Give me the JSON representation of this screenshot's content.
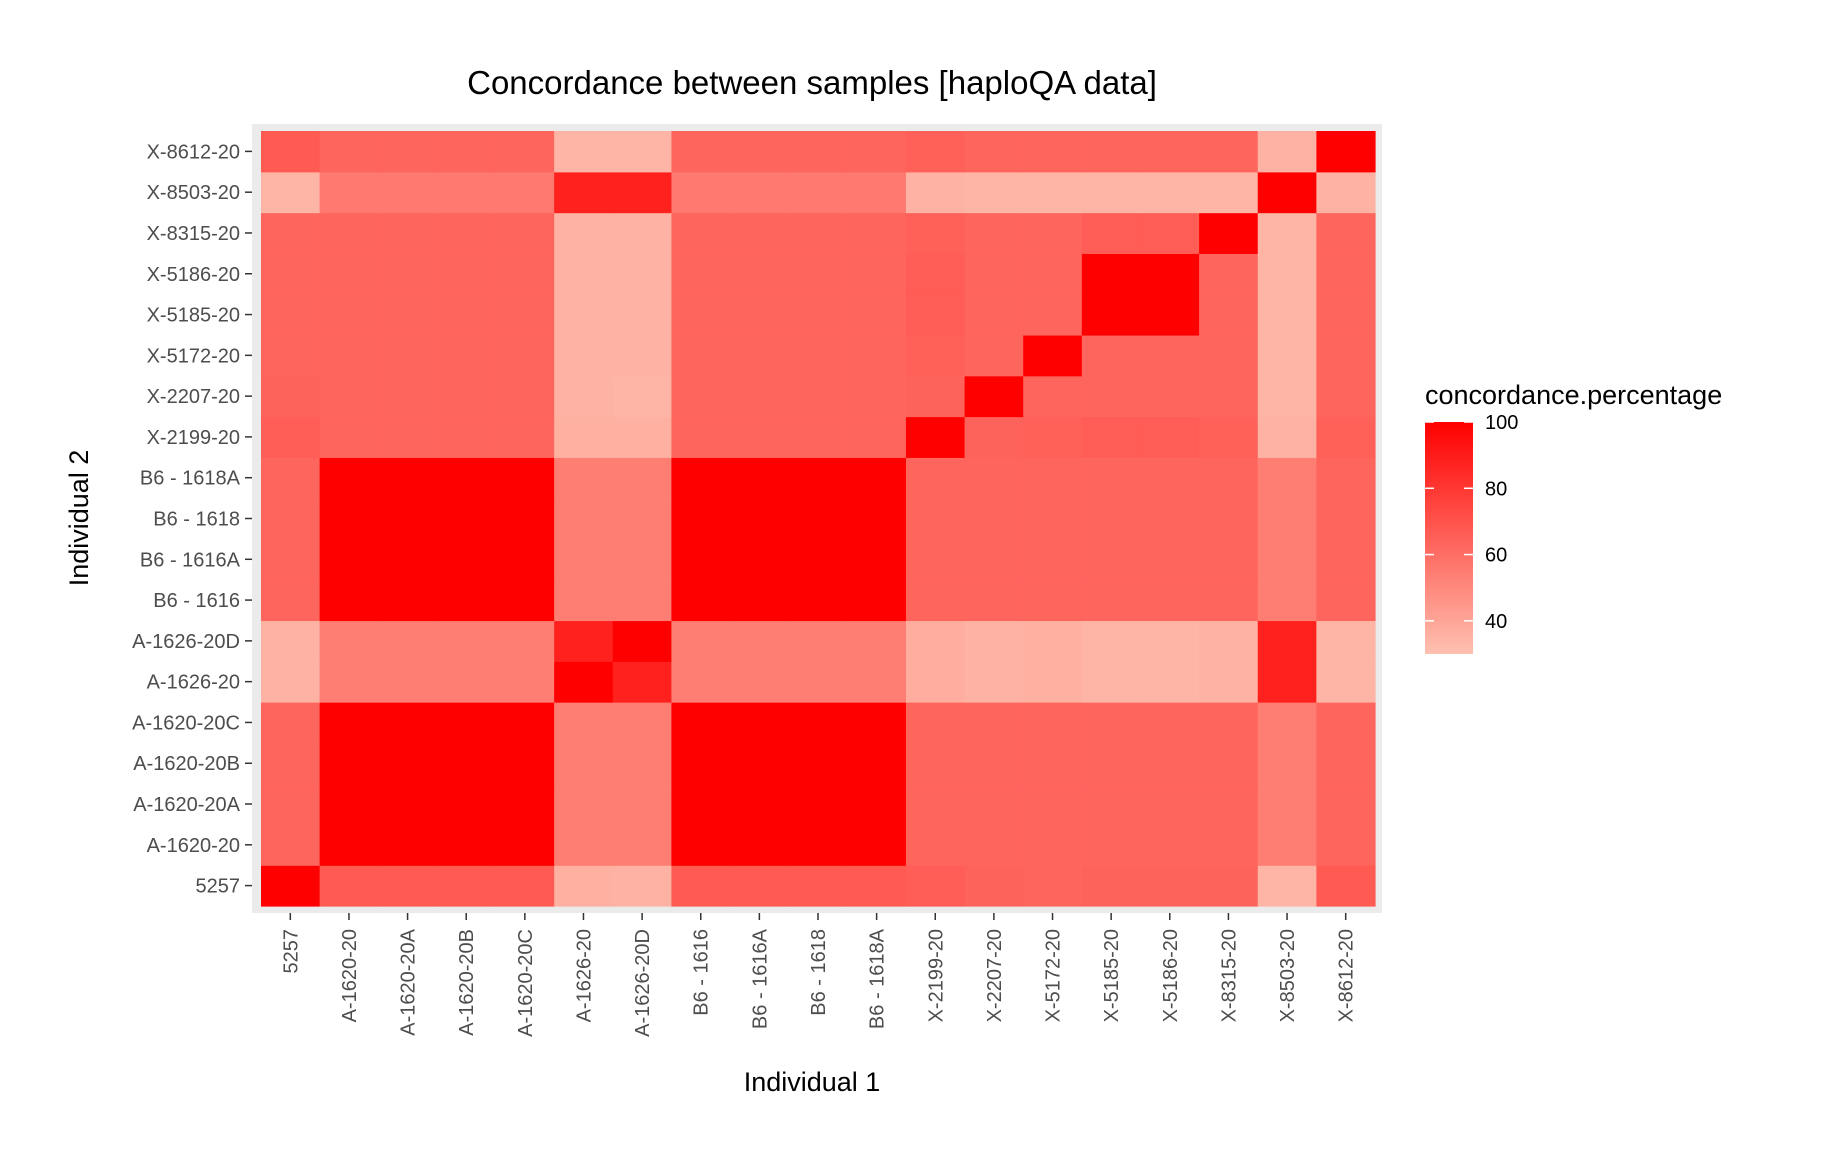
{
  "chart_data": {
    "type": "heatmap",
    "title": "Concordance between samples [haploQA data]",
    "xlabel": "Individual 1",
    "ylabel": "Individual 2",
    "x_categories": [
      "5257",
      "A-1620-20",
      "A-1620-20A",
      "A-1620-20B",
      "A-1620-20C",
      "A-1626-20",
      "A-1626-20D",
      "B6 - 1616",
      "B6 - 1616A",
      "B6 - 1618",
      "B6 - 1618A",
      "X-2199-20",
      "X-2207-20",
      "X-5172-20",
      "X-5185-20",
      "X-5186-20",
      "X-8315-20",
      "X-8503-20",
      "X-8612-20"
    ],
    "y_categories": [
      "5257",
      "A-1620-20",
      "A-1620-20A",
      "A-1620-20B",
      "A-1620-20C",
      "A-1626-20",
      "A-1626-20D",
      "B6 - 1616",
      "B6 - 1616A",
      "B6 - 1618",
      "B6 - 1618A",
      "X-2199-20",
      "X-2207-20",
      "X-5172-20",
      "X-5185-20",
      "X-5186-20",
      "X-8315-20",
      "X-8503-20",
      "X-8612-20"
    ],
    "values": [
      [
        100,
        67,
        67,
        67,
        67,
        36,
        35,
        67,
        67,
        67,
        67,
        66,
        64,
        63,
        64,
        64,
        64,
        34,
        67
      ],
      [
        63,
        100,
        100,
        100,
        100,
        54,
        54,
        100,
        100,
        100,
        100,
        63,
        63,
        63,
        63,
        63,
        63,
        54,
        63
      ],
      [
        63,
        100,
        100,
        100,
        100,
        54,
        54,
        100,
        100,
        100,
        100,
        63,
        63,
        63,
        63,
        63,
        63,
        54,
        63
      ],
      [
        63,
        100,
        100,
        100,
        100,
        54,
        54,
        100,
        100,
        100,
        100,
        63,
        63,
        63,
        63,
        63,
        63,
        54,
        63
      ],
      [
        63,
        100,
        100,
        100,
        100,
        54,
        54,
        100,
        100,
        100,
        100,
        63,
        63,
        63,
        63,
        63,
        63,
        54,
        63
      ],
      [
        35,
        54,
        54,
        54,
        54,
        100,
        88,
        54,
        54,
        54,
        54,
        37,
        35,
        36,
        34,
        34,
        35,
        88,
        34
      ],
      [
        35,
        54,
        54,
        54,
        54,
        88,
        100,
        54,
        54,
        54,
        54,
        37,
        35,
        36,
        34,
        34,
        35,
        88,
        34
      ],
      [
        63,
        100,
        100,
        100,
        100,
        54,
        54,
        100,
        100,
        100,
        100,
        63,
        63,
        63,
        63,
        63,
        63,
        54,
        63
      ],
      [
        63,
        100,
        100,
        100,
        100,
        54,
        54,
        100,
        100,
        100,
        100,
        63,
        63,
        63,
        63,
        63,
        63,
        54,
        63
      ],
      [
        63,
        100,
        100,
        100,
        100,
        54,
        54,
        100,
        100,
        100,
        100,
        63,
        63,
        63,
        63,
        63,
        63,
        54,
        63
      ],
      [
        63,
        100,
        100,
        100,
        100,
        54,
        54,
        100,
        100,
        100,
        100,
        63,
        63,
        63,
        63,
        63,
        63,
        54,
        63
      ],
      [
        66,
        63,
        63,
        63,
        63,
        36,
        36,
        63,
        63,
        63,
        63,
        100,
        64,
        65,
        66,
        66,
        65,
        35,
        65
      ],
      [
        64,
        63,
        63,
        63,
        63,
        35,
        34,
        63,
        63,
        63,
        63,
        64,
        100,
        63,
        63,
        63,
        63,
        34,
        63
      ],
      [
        63,
        63,
        63,
        63,
        63,
        35,
        35,
        63,
        63,
        63,
        63,
        65,
        63,
        100,
        63,
        63,
        63,
        34,
        63
      ],
      [
        63,
        63,
        63,
        63,
        63,
        35,
        35,
        63,
        63,
        63,
        63,
        66,
        63,
        63,
        100,
        100,
        63,
        34,
        63
      ],
      [
        63,
        63,
        63,
        63,
        63,
        35,
        35,
        63,
        63,
        63,
        63,
        66,
        63,
        63,
        100,
        100,
        63,
        34,
        63
      ],
      [
        63,
        63,
        63,
        63,
        63,
        35,
        35,
        63,
        63,
        63,
        63,
        65,
        63,
        63,
        66,
        66,
        100,
        34,
        63
      ],
      [
        34,
        56,
        56,
        56,
        56,
        88,
        88,
        56,
        56,
        56,
        56,
        35,
        34,
        34,
        34,
        34,
        34,
        100,
        35
      ],
      [
        67,
        63,
        63,
        63,
        63,
        34,
        34,
        63,
        63,
        63,
        63,
        65,
        63,
        63,
        63,
        63,
        63,
        35,
        100
      ]
    ],
    "colorscale": {
      "low_color": "#FEC0B0",
      "high_color": "#FF0000",
      "min": 30,
      "max": 100
    },
    "legend": {
      "title": "concordance.percentage",
      "ticks": [
        40,
        60,
        80,
        100
      ],
      "position": "right"
    },
    "grid": true,
    "panel_background": "#EBEBEB"
  }
}
